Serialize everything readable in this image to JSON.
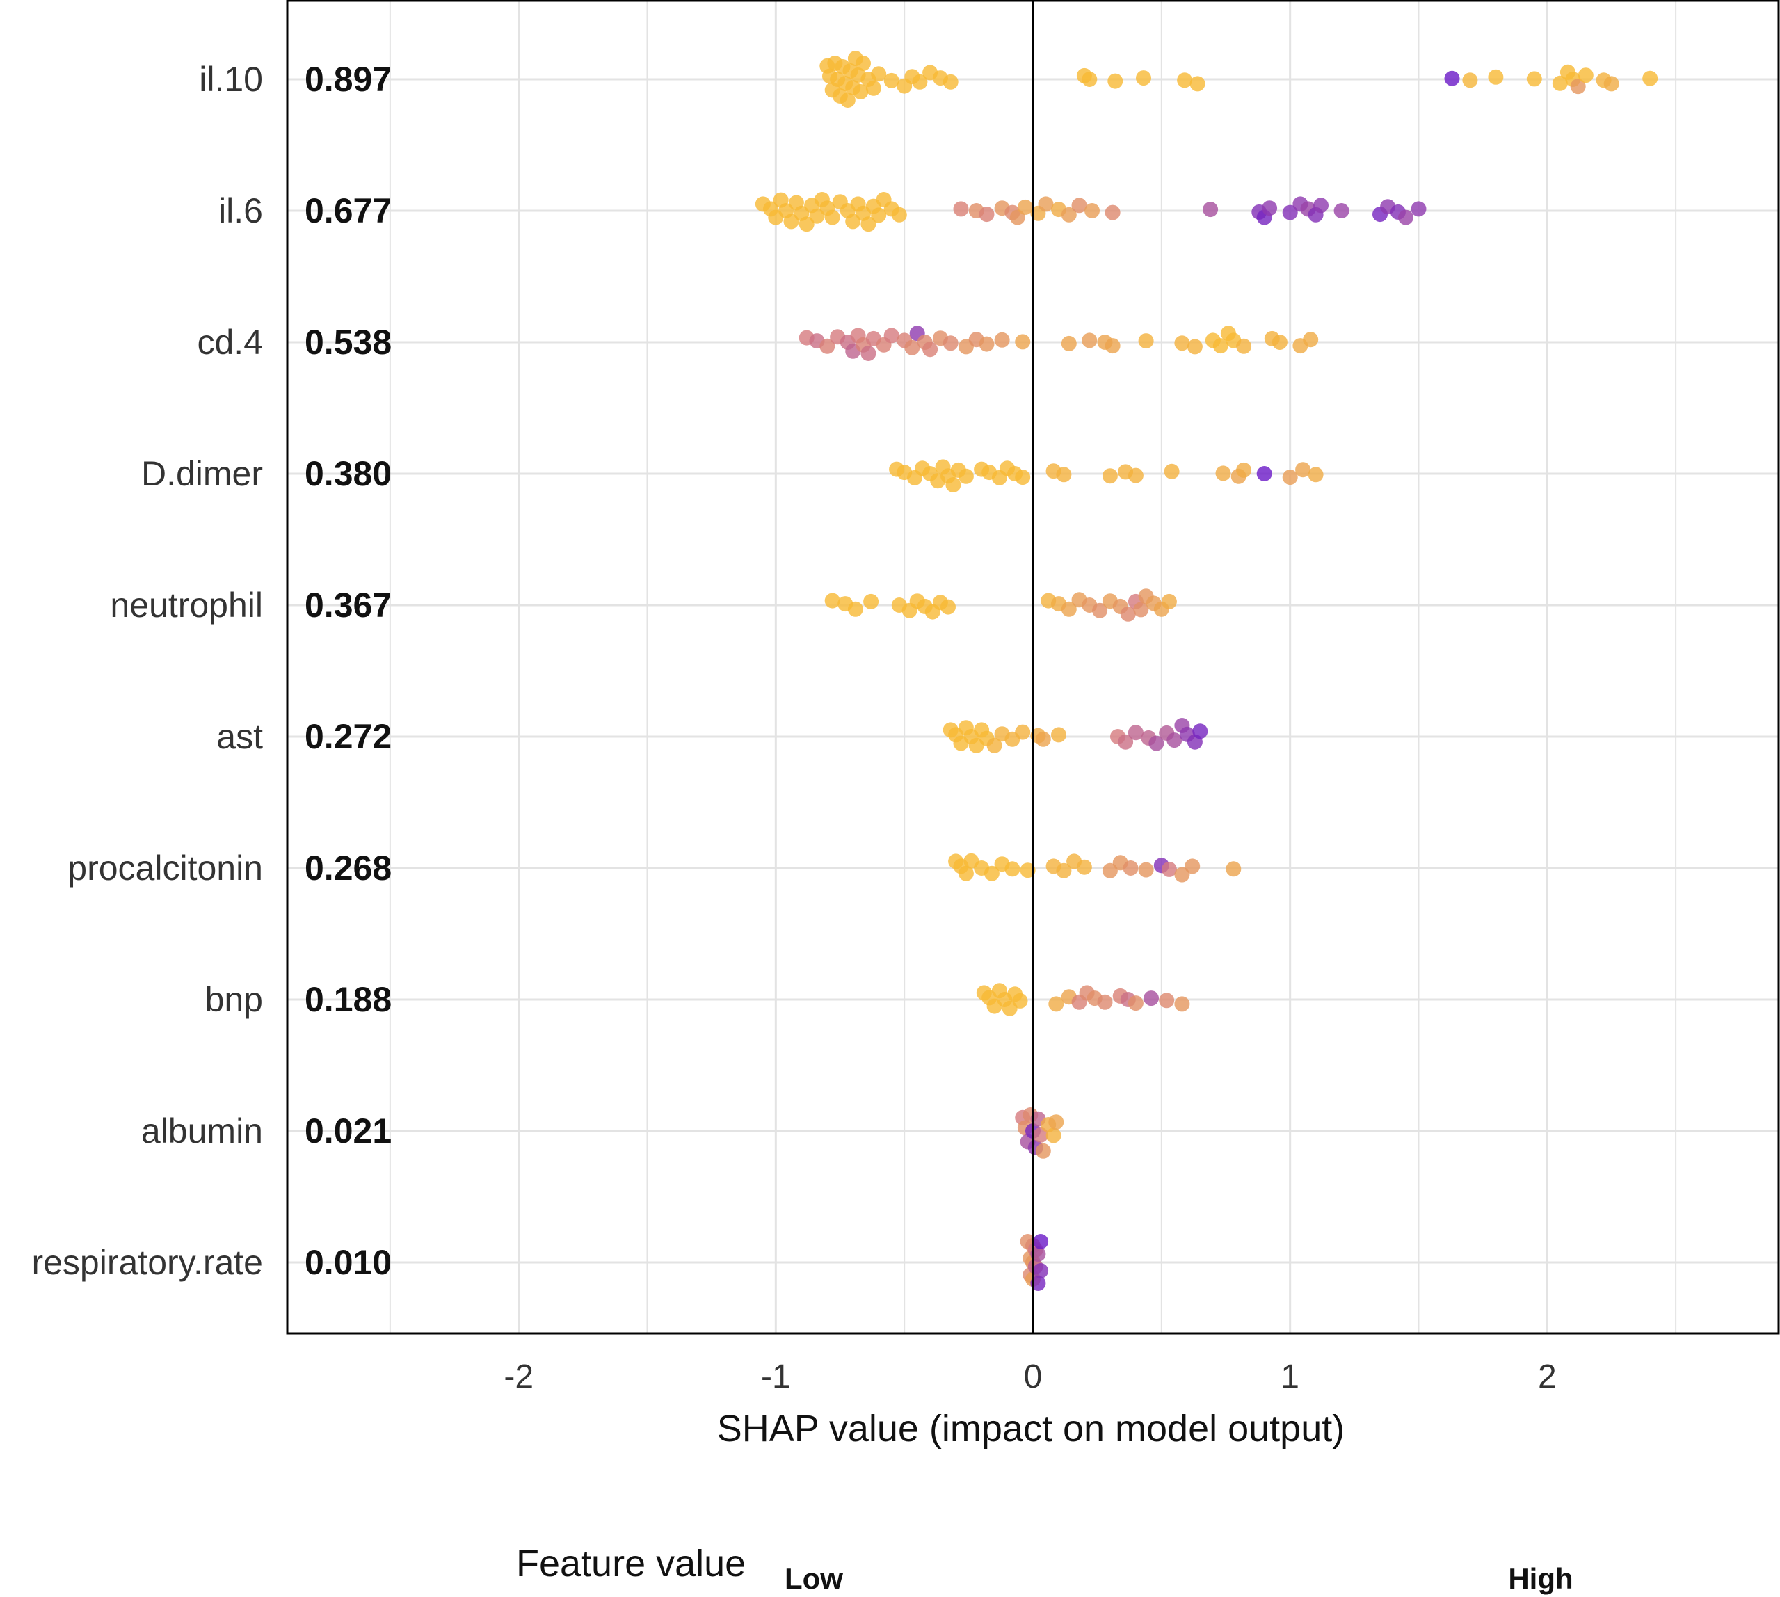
{
  "chart_data": {
    "type": "scatter",
    "subtype": "shap-summary",
    "title": "",
    "xlabel": "SHAP value (impact on model output)",
    "ylabel": "",
    "xlim": [
      -2.9,
      2.9
    ],
    "xticks": [
      -2,
      -1,
      0,
      1,
      2
    ],
    "xtick_labels": [
      "-2",
      "-1",
      "0",
      "1",
      "2"
    ],
    "grid": true,
    "colors": {
      "low": "#FBC02D",
      "mid": "#D67A7E",
      "high": "#5E0ECF",
      "axis": "#000000",
      "grid": "#E3E3E3"
    },
    "legend": {
      "title": "Feature value",
      "low_label": "Low",
      "high_label": "High",
      "placement": "bottom"
    },
    "features": [
      {
        "name": "il.10",
        "importance": "0.897",
        "points": [
          [
            -0.8,
            0.05
          ],
          [
            -0.79,
            0.05
          ],
          [
            -0.78,
            0.05
          ],
          [
            -0.77,
            0.05
          ],
          [
            -0.76,
            0.05
          ],
          [
            -0.75,
            0.05
          ],
          [
            -0.74,
            0.05
          ],
          [
            -0.73,
            0.05
          ],
          [
            -0.72,
            0.05
          ],
          [
            -0.71,
            0.05
          ],
          [
            -0.7,
            0.05
          ],
          [
            -0.69,
            0.05
          ],
          [
            -0.68,
            0.05
          ],
          [
            -0.67,
            0.05
          ],
          [
            -0.66,
            0.05
          ],
          [
            -0.64,
            0.05
          ],
          [
            -0.62,
            0.05
          ],
          [
            -0.6,
            0.05
          ],
          [
            -0.55,
            0.05
          ],
          [
            -0.5,
            0.05
          ],
          [
            -0.47,
            0.05
          ],
          [
            -0.44,
            0.05
          ],
          [
            -0.4,
            0.05
          ],
          [
            -0.36,
            0.05
          ],
          [
            -0.32,
            0.05
          ],
          [
            0.2,
            0.05
          ],
          [
            0.22,
            0.05
          ],
          [
            0.32,
            0.05
          ],
          [
            0.43,
            0.05
          ],
          [
            0.59,
            0.05
          ],
          [
            0.64,
            0.05
          ],
          [
            1.63,
            0.95
          ],
          [
            1.7,
            0.08
          ],
          [
            1.8,
            0.05
          ],
          [
            1.95,
            0.05
          ],
          [
            2.05,
            0.05
          ],
          [
            2.08,
            0.05
          ],
          [
            2.1,
            0.05
          ],
          [
            2.12,
            0.3
          ],
          [
            2.15,
            0.05
          ],
          [
            2.22,
            0.1
          ],
          [
            2.25,
            0.15
          ],
          [
            2.4,
            0.05
          ]
        ]
      },
      {
        "name": "il.6",
        "importance": "0.677",
        "points": [
          [
            -1.05,
            0.05
          ],
          [
            -1.02,
            0.05
          ],
          [
            -1.0,
            0.05
          ],
          [
            -0.98,
            0.05
          ],
          [
            -0.96,
            0.05
          ],
          [
            -0.94,
            0.05
          ],
          [
            -0.92,
            0.05
          ],
          [
            -0.9,
            0.05
          ],
          [
            -0.88,
            0.05
          ],
          [
            -0.86,
            0.05
          ],
          [
            -0.84,
            0.05
          ],
          [
            -0.82,
            0.05
          ],
          [
            -0.8,
            0.05
          ],
          [
            -0.78,
            0.05
          ],
          [
            -0.75,
            0.05
          ],
          [
            -0.72,
            0.05
          ],
          [
            -0.7,
            0.05
          ],
          [
            -0.68,
            0.05
          ],
          [
            -0.66,
            0.05
          ],
          [
            -0.64,
            0.05
          ],
          [
            -0.62,
            0.05
          ],
          [
            -0.6,
            0.05
          ],
          [
            -0.58,
            0.05
          ],
          [
            -0.55,
            0.05
          ],
          [
            -0.52,
            0.05
          ],
          [
            -0.28,
            0.45
          ],
          [
            -0.22,
            0.35
          ],
          [
            -0.18,
            0.45
          ],
          [
            -0.12,
            0.3
          ],
          [
            -0.08,
            0.4
          ],
          [
            -0.06,
            0.3
          ],
          [
            -0.03,
            0.2
          ],
          [
            0.02,
            0.15
          ],
          [
            0.05,
            0.25
          ],
          [
            0.1,
            0.15
          ],
          [
            0.14,
            0.25
          ],
          [
            0.18,
            0.35
          ],
          [
            0.23,
            0.25
          ],
          [
            0.31,
            0.4
          ],
          [
            0.69,
            0.7
          ],
          [
            0.88,
            0.85
          ],
          [
            0.9,
            0.9
          ],
          [
            0.92,
            0.8
          ],
          [
            1.0,
            0.85
          ],
          [
            1.04,
            0.8
          ],
          [
            1.07,
            0.75
          ],
          [
            1.1,
            0.85
          ],
          [
            1.12,
            0.8
          ],
          [
            1.2,
            0.75
          ],
          [
            1.35,
            0.9
          ],
          [
            1.38,
            0.8
          ],
          [
            1.42,
            0.85
          ],
          [
            1.45,
            0.75
          ],
          [
            1.5,
            0.8
          ]
        ]
      },
      {
        "name": "cd.4",
        "importance": "0.538",
        "points": [
          [
            -0.88,
            0.5
          ],
          [
            -0.84,
            0.55
          ],
          [
            -0.8,
            0.45
          ],
          [
            -0.76,
            0.5
          ],
          [
            -0.72,
            0.55
          ],
          [
            -0.7,
            0.6
          ],
          [
            -0.68,
            0.5
          ],
          [
            -0.66,
            0.45
          ],
          [
            -0.64,
            0.55
          ],
          [
            -0.62,
            0.5
          ],
          [
            -0.58,
            0.45
          ],
          [
            -0.55,
            0.5
          ],
          [
            -0.5,
            0.45
          ],
          [
            -0.47,
            0.4
          ],
          [
            -0.45,
            0.8
          ],
          [
            -0.42,
            0.4
          ],
          [
            -0.4,
            0.45
          ],
          [
            -0.36,
            0.35
          ],
          [
            -0.32,
            0.4
          ],
          [
            -0.26,
            0.3
          ],
          [
            -0.22,
            0.35
          ],
          [
            -0.18,
            0.3
          ],
          [
            -0.12,
            0.3
          ],
          [
            -0.04,
            0.2
          ],
          [
            0.14,
            0.2
          ],
          [
            0.22,
            0.25
          ],
          [
            0.28,
            0.2
          ],
          [
            0.31,
            0.2
          ],
          [
            0.44,
            0.1
          ],
          [
            0.58,
            0.1
          ],
          [
            0.63,
            0.1
          ],
          [
            0.7,
            0.05
          ],
          [
            0.73,
            0.05
          ],
          [
            0.76,
            0.05
          ],
          [
            0.78,
            0.05
          ],
          [
            0.82,
            0.1
          ],
          [
            0.93,
            0.1
          ],
          [
            0.96,
            0.1
          ],
          [
            1.04,
            0.15
          ],
          [
            1.08,
            0.15
          ]
        ]
      },
      {
        "name": "D.dimer",
        "importance": "0.380",
        "points": [
          [
            -0.53,
            0.05
          ],
          [
            -0.5,
            0.05
          ],
          [
            -0.46,
            0.05
          ],
          [
            -0.43,
            0.05
          ],
          [
            -0.4,
            0.05
          ],
          [
            -0.37,
            0.05
          ],
          [
            -0.35,
            0.05
          ],
          [
            -0.33,
            0.05
          ],
          [
            -0.31,
            0.05
          ],
          [
            -0.29,
            0.05
          ],
          [
            -0.26,
            0.05
          ],
          [
            -0.2,
            0.05
          ],
          [
            -0.17,
            0.05
          ],
          [
            -0.13,
            0.05
          ],
          [
            -0.1,
            0.05
          ],
          [
            -0.07,
            0.05
          ],
          [
            -0.04,
            0.05
          ],
          [
            0.08,
            0.1
          ],
          [
            0.12,
            0.1
          ],
          [
            0.3,
            0.1
          ],
          [
            0.36,
            0.1
          ],
          [
            0.4,
            0.1
          ],
          [
            0.54,
            0.1
          ],
          [
            0.74,
            0.15
          ],
          [
            0.8,
            0.2
          ],
          [
            0.82,
            0.15
          ],
          [
            0.9,
            0.95
          ],
          [
            1.0,
            0.25
          ],
          [
            1.05,
            0.2
          ],
          [
            1.1,
            0.15
          ]
        ]
      },
      {
        "name": "neutrophil",
        "importance": "0.367",
        "points": [
          [
            -0.78,
            0.05
          ],
          [
            -0.73,
            0.05
          ],
          [
            -0.69,
            0.05
          ],
          [
            -0.63,
            0.05
          ],
          [
            -0.52,
            0.05
          ],
          [
            -0.48,
            0.05
          ],
          [
            -0.45,
            0.05
          ],
          [
            -0.42,
            0.05
          ],
          [
            -0.39,
            0.05
          ],
          [
            -0.36,
            0.05
          ],
          [
            -0.33,
            0.05
          ],
          [
            0.06,
            0.1
          ],
          [
            0.1,
            0.15
          ],
          [
            0.14,
            0.2
          ],
          [
            0.18,
            0.25
          ],
          [
            0.22,
            0.3
          ],
          [
            0.26,
            0.35
          ],
          [
            0.3,
            0.25
          ],
          [
            0.34,
            0.3
          ],
          [
            0.37,
            0.4
          ],
          [
            0.4,
            0.5
          ],
          [
            0.42,
            0.35
          ],
          [
            0.44,
            0.3
          ],
          [
            0.47,
            0.25
          ],
          [
            0.5,
            0.2
          ],
          [
            0.53,
            0.15
          ]
        ]
      },
      {
        "name": "ast",
        "importance": "0.272",
        "points": [
          [
            -0.32,
            0.05
          ],
          [
            -0.3,
            0.05
          ],
          [
            -0.28,
            0.05
          ],
          [
            -0.26,
            0.05
          ],
          [
            -0.24,
            0.05
          ],
          [
            -0.22,
            0.05
          ],
          [
            -0.2,
            0.05
          ],
          [
            -0.18,
            0.05
          ],
          [
            -0.15,
            0.1
          ],
          [
            -0.12,
            0.1
          ],
          [
            -0.08,
            0.1
          ],
          [
            -0.04,
            0.1
          ],
          [
            0.02,
            0.15
          ],
          [
            0.04,
            0.2
          ],
          [
            0.1,
            0.1
          ],
          [
            0.33,
            0.5
          ],
          [
            0.36,
            0.55
          ],
          [
            0.4,
            0.6
          ],
          [
            0.45,
            0.6
          ],
          [
            0.48,
            0.7
          ],
          [
            0.52,
            0.65
          ],
          [
            0.55,
            0.7
          ],
          [
            0.58,
            0.75
          ],
          [
            0.6,
            0.8
          ],
          [
            0.63,
            0.85
          ],
          [
            0.65,
            0.9
          ]
        ]
      },
      {
        "name": "procalcitonin",
        "importance": "0.268",
        "points": [
          [
            -0.3,
            0.05
          ],
          [
            -0.28,
            0.05
          ],
          [
            -0.26,
            0.05
          ],
          [
            -0.24,
            0.05
          ],
          [
            -0.2,
            0.05
          ],
          [
            -0.16,
            0.05
          ],
          [
            -0.12,
            0.05
          ],
          [
            -0.08,
            0.05
          ],
          [
            -0.02,
            0.05
          ],
          [
            0.08,
            0.1
          ],
          [
            0.12,
            0.1
          ],
          [
            0.16,
            0.1
          ],
          [
            0.2,
            0.1
          ],
          [
            0.3,
            0.3
          ],
          [
            0.34,
            0.3
          ],
          [
            0.38,
            0.35
          ],
          [
            0.44,
            0.3
          ],
          [
            0.5,
            0.85
          ],
          [
            0.53,
            0.5
          ],
          [
            0.58,
            0.3
          ],
          [
            0.62,
            0.3
          ],
          [
            0.78,
            0.2
          ]
        ]
      },
      {
        "name": "bnp",
        "importance": "0.188",
        "points": [
          [
            -0.19,
            0.05
          ],
          [
            -0.17,
            0.05
          ],
          [
            -0.15,
            0.05
          ],
          [
            -0.13,
            0.05
          ],
          [
            -0.11,
            0.05
          ],
          [
            -0.09,
            0.05
          ],
          [
            -0.07,
            0.05
          ],
          [
            -0.05,
            0.05
          ],
          [
            0.09,
            0.15
          ],
          [
            0.14,
            0.2
          ],
          [
            0.18,
            0.45
          ],
          [
            0.21,
            0.4
          ],
          [
            0.24,
            0.35
          ],
          [
            0.28,
            0.4
          ],
          [
            0.34,
            0.45
          ],
          [
            0.37,
            0.55
          ],
          [
            0.4,
            0.35
          ],
          [
            0.46,
            0.7
          ],
          [
            0.52,
            0.4
          ],
          [
            0.58,
            0.3
          ]
        ]
      },
      {
        "name": "albumin",
        "importance": "0.021",
        "points": [
          [
            -0.04,
            0.5
          ],
          [
            -0.02,
            0.7
          ],
          [
            0.0,
            0.9
          ],
          [
            0.02,
            0.6
          ],
          [
            0.04,
            0.3
          ],
          [
            0.06,
            0.15
          ],
          [
            0.08,
            0.1
          ],
          [
            0.09,
            0.2
          ],
          [
            -0.01,
            0.4
          ],
          [
            0.01,
            0.8
          ],
          [
            -0.03,
            0.35
          ],
          [
            0.03,
            0.5
          ]
        ]
      },
      {
        "name": "respiratory.rate",
        "importance": "0.010",
        "points": [
          [
            -0.01,
            0.3
          ],
          [
            0.0,
            0.4
          ],
          [
            0.01,
            0.5
          ],
          [
            0.02,
            0.9
          ],
          [
            0.03,
            0.85
          ],
          [
            -0.02,
            0.35
          ],
          [
            0.0,
            0.3
          ],
          [
            0.02,
            0.7
          ],
          [
            0.01,
            0.6
          ],
          [
            -0.01,
            0.4
          ],
          [
            0.03,
            0.95
          ],
          [
            0.0,
            0.25
          ]
        ]
      }
    ]
  }
}
